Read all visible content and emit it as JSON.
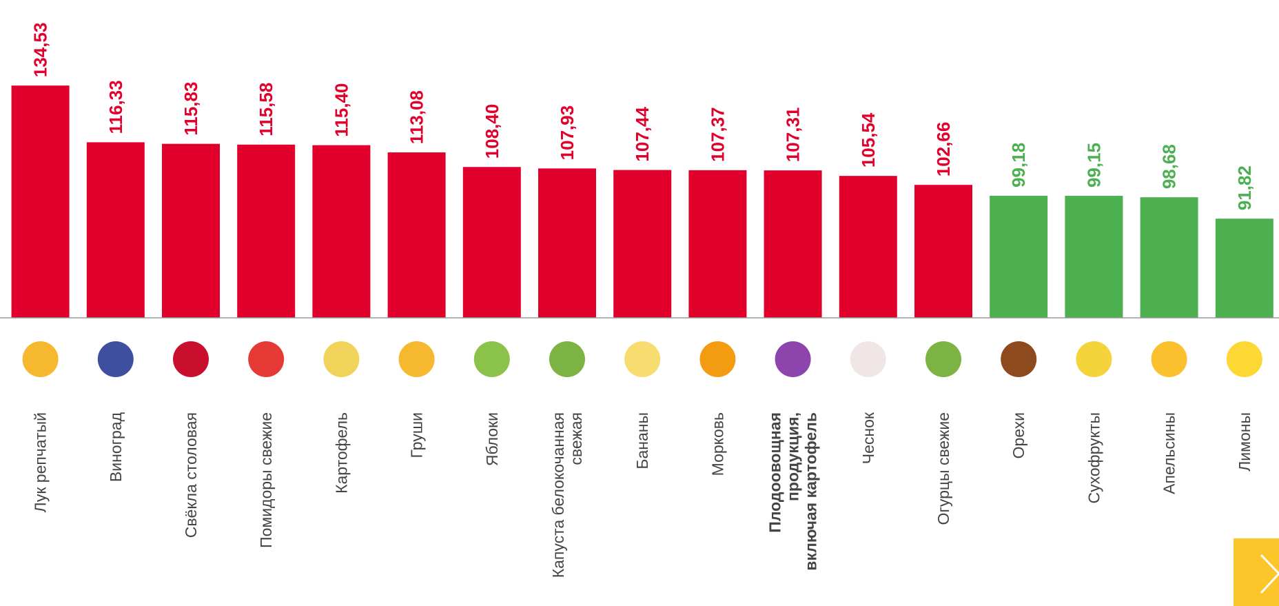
{
  "chart_data": {
    "type": "bar",
    "categories": [
      [
        "Лук репчатый"
      ],
      [
        "Виноград"
      ],
      [
        "Свёкла столовая"
      ],
      [
        "Помидоры свежие"
      ],
      [
        "Картофель"
      ],
      [
        "Груши"
      ],
      [
        "Яблоки"
      ],
      [
        "Капуста белокочанная",
        "свежая"
      ],
      [
        "Бананы"
      ],
      [
        "Морковь"
      ],
      [
        "Плодоовощная",
        "продукция,",
        "включая картофель"
      ],
      [
        "Чеснок"
      ],
      [
        "Огурцы свежие"
      ],
      [
        "Орехи"
      ],
      [
        "Сухофрукты"
      ],
      [
        "Апельсины"
      ],
      [
        "Лимоны"
      ]
    ],
    "values": [
      134.53,
      116.33,
      115.83,
      115.58,
      115.4,
      113.08,
      108.4,
      107.93,
      107.44,
      107.37,
      107.31,
      105.54,
      102.66,
      99.18,
      99.15,
      98.68,
      91.82
    ],
    "value_labels": [
      "134,53",
      "116,33",
      "115,83",
      "115,58",
      "115,40",
      "113,08",
      "108,40",
      "107,93",
      "107,44",
      "107,37",
      "107,31",
      "105,54",
      "102,66",
      "99,18",
      "99,15",
      "98,68",
      "91,82"
    ],
    "colors": [
      "#e0002b",
      "#e0002b",
      "#e0002b",
      "#e0002b",
      "#e0002b",
      "#e0002b",
      "#e0002b",
      "#e0002b",
      "#e0002b",
      "#e0002b",
      "#e0002b",
      "#e0002b",
      "#e0002b",
      "#4caf50",
      "#4caf50",
      "#4caf50",
      "#4caf50"
    ],
    "highlight_index": 10,
    "ylim": [
      60,
      160
    ]
  }
}
